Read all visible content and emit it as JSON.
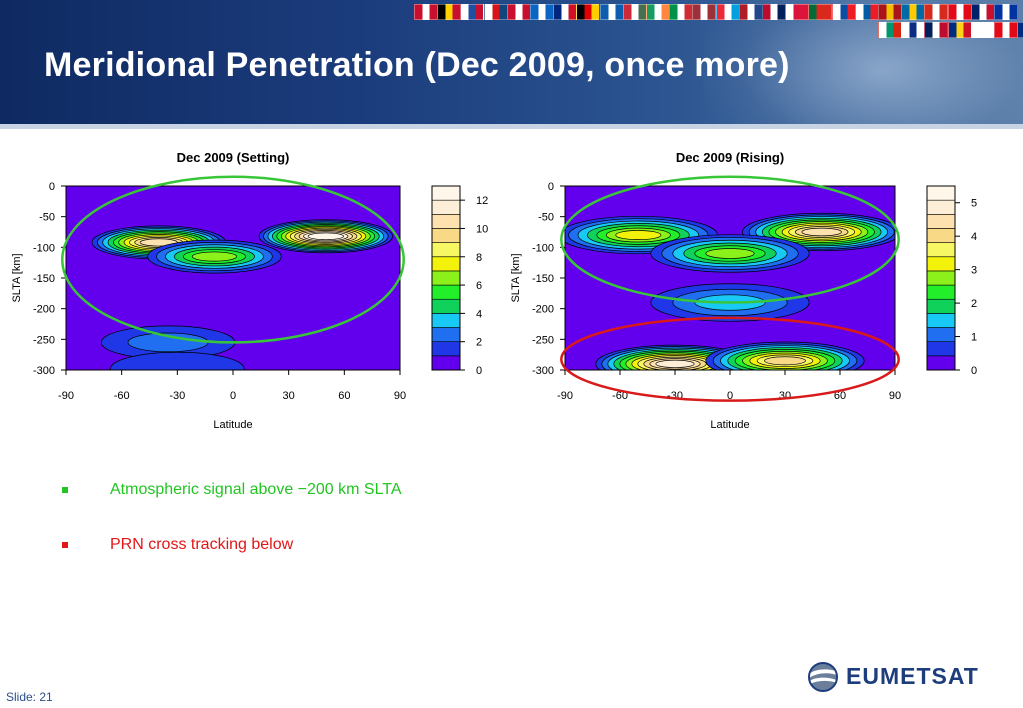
{
  "slide": {
    "title": "Meridional Penetration (Dec 2009, once more)",
    "slide_number": "Slide: 21",
    "logo_text": "EUMETSAT",
    "bullets": [
      {
        "text": "Atmospheric signal above −200 km SLTA",
        "color": "#22c522"
      },
      {
        "text": "PRN cross tracking below",
        "color": "#e21616"
      }
    ],
    "flag_count": 33
  },
  "chart_data": [
    {
      "type": "heatmap",
      "subtype": "filled-contour",
      "title": "Dec 2009 (Setting)",
      "xlabel": "Latitude",
      "ylabel": "SLTA [km]",
      "xlim": [
        -90,
        90
      ],
      "ylim": [
        -300,
        0
      ],
      "x_ticks": [
        -90,
        -60,
        -30,
        0,
        30,
        60,
        90
      ],
      "y_ticks": [
        0,
        -50,
        -100,
        -150,
        -200,
        -250,
        -300
      ],
      "colorbar": {
        "min": 0,
        "max": 13,
        "ticks": [
          0,
          2,
          4,
          6,
          8,
          10,
          12
        ]
      },
      "blobs": [
        {
          "lat": -40,
          "slta": -92,
          "value": 10.5
        },
        {
          "lat": 50,
          "slta": -82,
          "value": 12.5
        },
        {
          "lat": -10,
          "slta": -115,
          "value": 7
        },
        {
          "lat": -35,
          "slta": -255,
          "value": 2.5
        },
        {
          "lat": -30,
          "slta": -298,
          "value": 1.5
        }
      ],
      "annotation": {
        "type": "ellipse",
        "color": "#38c638",
        "lat_range": [
          -92,
          92
        ],
        "slta_range": [
          -255,
          15
        ]
      }
    },
    {
      "type": "heatmap",
      "subtype": "filled-contour",
      "title": "Dec 2009 (Rising)",
      "xlabel": "Latitude",
      "ylabel": "SLTA [km]",
      "xlim": [
        -90,
        90
      ],
      "ylim": [
        -300,
        0
      ],
      "x_ticks": [
        -90,
        -60,
        -30,
        0,
        30,
        60,
        90
      ],
      "y_ticks": [
        0,
        -50,
        -100,
        -150,
        -200,
        -250,
        -300
      ],
      "colorbar": {
        "min": 0,
        "max": 5.5,
        "ticks": [
          0,
          1,
          2,
          3,
          4,
          5
        ]
      },
      "blobs": [
        {
          "lat": -50,
          "slta": -80,
          "value": 3.2
        },
        {
          "lat": 50,
          "slta": -75,
          "value": 4.4
        },
        {
          "lat": 0,
          "slta": -110,
          "value": 2.9
        },
        {
          "lat": -30,
          "slta": -290,
          "value": 5.2
        },
        {
          "lat": 30,
          "slta": -285,
          "value": 4.0
        },
        {
          "lat": 0,
          "slta": -190,
          "value": 1.3
        }
      ],
      "annotations": [
        {
          "type": "ellipse",
          "color": "#38c638",
          "lat_range": [
            -92,
            92
          ],
          "slta_range": [
            -190,
            15
          ]
        },
        {
          "type": "ellipse",
          "color": "#d81a1a",
          "lat_range": [
            -92,
            92
          ],
          "slta_range": [
            -350,
            -215
          ]
        }
      ]
    }
  ]
}
